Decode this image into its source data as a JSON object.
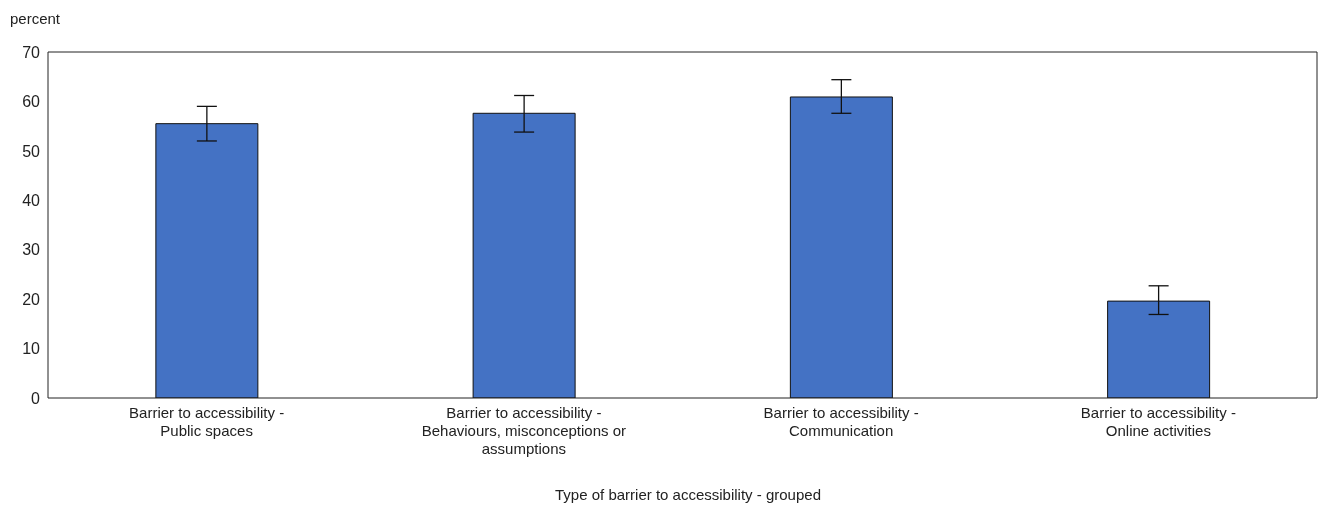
{
  "chart_data": {
    "type": "bar",
    "ylabel": "percent",
    "xlabel": "Type of barrier to accessibility - grouped",
    "categories": [
      "Barrier to accessibility - Public spaces",
      "Barrier to accessibility - Behaviours, misconceptions or assumptions",
      "Barrier to accessibility - Communication",
      "Barrier to accessibility - Online activities"
    ],
    "values": [
      55.5,
      57.6,
      60.9,
      19.6
    ],
    "errors": [
      [
        52.0,
        59.0
      ],
      [
        53.8,
        61.2
      ],
      [
        57.6,
        64.4
      ],
      [
        16.9,
        22.7
      ]
    ],
    "color": "#4472c4",
    "ylim": [
      0,
      70
    ],
    "yticks": [
      0,
      10,
      20,
      30,
      40,
      50,
      60,
      70
    ],
    "grid": false,
    "legend": false
  }
}
